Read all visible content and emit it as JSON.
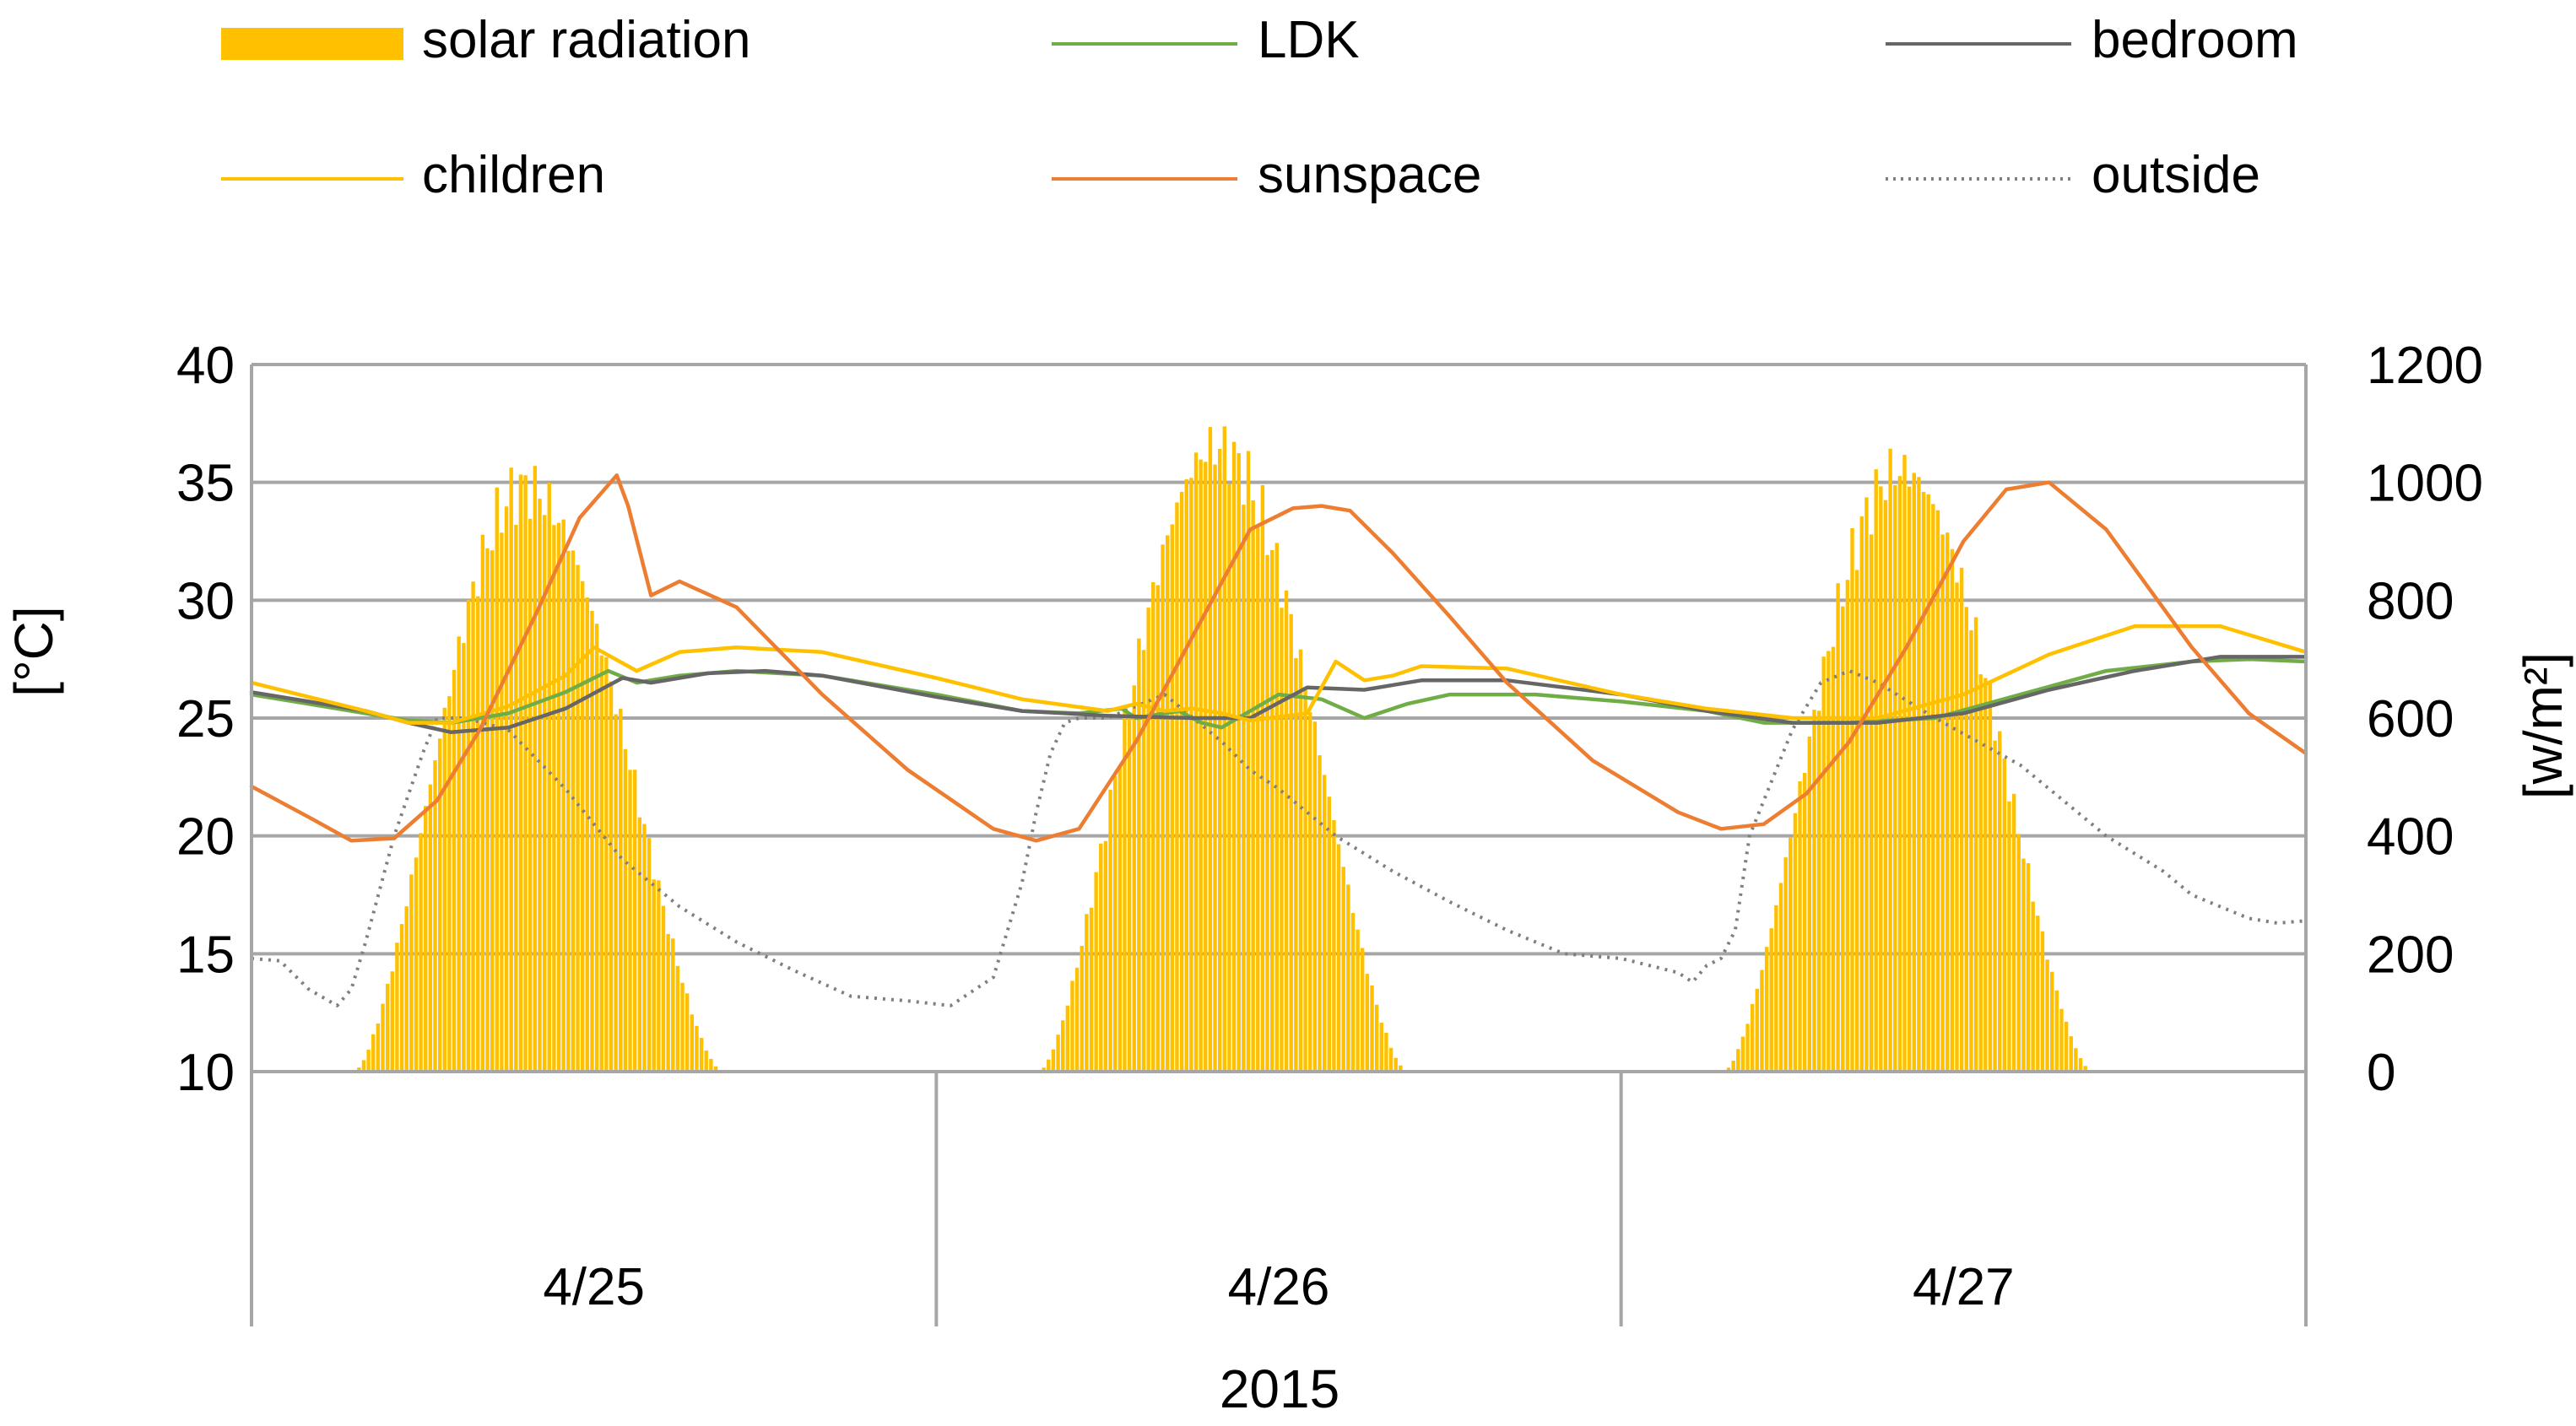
{
  "chart_data": {
    "type": "line",
    "title": "",
    "xlabel": "2015",
    "ylabel": "[°C]",
    "y2label": "[w/m²]",
    "ylim": [
      10,
      40
    ],
    "y2lim": [
      0,
      1200
    ],
    "yticks": [
      10,
      15,
      20,
      25,
      30,
      35,
      40
    ],
    "y2ticks": [
      0,
      200,
      400,
      600,
      800,
      1000,
      1200
    ],
    "x_unit": "hours from 0:00 on 4/25",
    "xlim": [
      0,
      72
    ],
    "day_labels": [
      "4/25",
      "4/26",
      "4/27"
    ],
    "day_boundaries": [
      0,
      24,
      48,
      72
    ],
    "grid": true,
    "legend_position": "top",
    "legend": [
      {
        "name": "solar radiation",
        "color": "#FFC000",
        "style": "bar"
      },
      {
        "name": "LDK",
        "color": "#70AD47",
        "style": "line"
      },
      {
        "name": "bedroom",
        "color": "#666666",
        "style": "line"
      },
      {
        "name": "children",
        "color": "#FFC000",
        "style": "line"
      },
      {
        "name": "sunspace",
        "color": "#ED7D31",
        "style": "line"
      },
      {
        "name": "outside",
        "color": "#7f7f7f",
        "style": "dotted"
      }
    ],
    "solar_radiation": {
      "axis": "right",
      "unit": "w/m2",
      "step_hours": 0.1667,
      "days": [
        {
          "start": 3.6,
          "peak_time": 9.6,
          "peak": 990,
          "end": 16.5
        },
        {
          "start": 27.6,
          "peak_time": 33.8,
          "peak": 1060,
          "end": 40.5
        },
        {
          "start": 51.6,
          "peak_time": 57.8,
          "peak": 1020,
          "end": 64.5
        }
      ]
    },
    "series": [
      {
        "name": "LDK",
        "axis": "left",
        "x": [
          0,
          2,
          4,
          5.5,
          7,
          9,
          11,
          12.5,
          13.5,
          15,
          17,
          20,
          24,
          27,
          29,
          30.5,
          31,
          32.5,
          33.3,
          34,
          36,
          37.5,
          39,
          40.5,
          42,
          45,
          48,
          51,
          53,
          56,
          59,
          62,
          65,
          68,
          70,
          72
        ],
        "y": [
          26.0,
          25.6,
          25.2,
          24.9,
          24.8,
          25.2,
          26.1,
          27.0,
          26.5,
          26.8,
          27.0,
          26.8,
          26.0,
          25.3,
          25.2,
          25.4,
          25.0,
          25.3,
          24.8,
          24.6,
          26.0,
          25.8,
          25.0,
          25.6,
          26.0,
          26.0,
          25.7,
          25.3,
          24.8,
          24.8,
          25.0,
          26.0,
          27.0,
          27.4,
          27.5,
          27.4
        ]
      },
      {
        "name": "bedroom",
        "axis": "left",
        "x": [
          0,
          2,
          4,
          5.5,
          7,
          9,
          11,
          13,
          14,
          16,
          18,
          20,
          24,
          27,
          30,
          33,
          35,
          37,
          39,
          41,
          44,
          48,
          51,
          54,
          57,
          60,
          63,
          66,
          69,
          72
        ],
        "y": [
          26.1,
          25.7,
          25.3,
          24.8,
          24.4,
          24.6,
          25.4,
          26.7,
          26.5,
          26.9,
          27.0,
          26.8,
          25.9,
          25.3,
          25.1,
          25.0,
          25.0,
          26.3,
          26.2,
          26.6,
          26.6,
          26.0,
          25.3,
          24.8,
          24.8,
          25.2,
          26.2,
          27.0,
          27.6,
          27.6
        ]
      },
      {
        "name": "children",
        "axis": "left",
        "x": [
          0,
          2,
          4,
          5.5,
          7,
          9,
          11,
          12,
          13.5,
          15,
          17,
          20,
          24,
          27,
          30,
          31,
          32,
          33,
          34,
          35,
          37,
          38,
          39,
          40,
          41,
          44,
          48,
          51,
          54,
          57,
          60,
          63,
          66,
          69,
          72
        ],
        "y": [
          26.5,
          25.9,
          25.3,
          24.8,
          24.8,
          25.5,
          26.8,
          28.0,
          27.0,
          27.8,
          28.0,
          27.8,
          26.7,
          25.8,
          25.3,
          25.6,
          25.3,
          25.4,
          25.2,
          24.9,
          25.2,
          27.4,
          26.6,
          26.8,
          27.2,
          27.1,
          26.0,
          25.4,
          25.0,
          25.0,
          26.0,
          27.7,
          28.9,
          28.9,
          27.8
        ]
      },
      {
        "name": "sunspace",
        "axis": "left",
        "x": [
          0,
          2,
          3.5,
          5,
          6.5,
          8,
          10,
          11.5,
          12.8,
          13.2,
          14,
          15,
          17,
          20,
          23,
          26,
          27.5,
          29,
          31,
          33,
          35,
          36.5,
          37.5,
          38.5,
          40,
          42,
          44,
          47,
          50,
          51.5,
          53,
          54.5,
          56,
          58,
          60,
          61.5,
          63,
          65,
          68,
          70,
          72
        ],
        "y": [
          22.1,
          20.8,
          19.8,
          19.9,
          21.5,
          24.5,
          29.5,
          33.5,
          35.3,
          34.0,
          30.2,
          30.8,
          29.7,
          26.0,
          22.8,
          20.3,
          19.8,
          20.3,
          24.0,
          28.5,
          33.0,
          33.9,
          34.0,
          33.8,
          32.0,
          29.3,
          26.5,
          23.2,
          21.0,
          20.3,
          20.5,
          21.8,
          24.0,
          28.0,
          32.5,
          34.7,
          35.0,
          33.0,
          28.0,
          25.2,
          23.5
        ]
      },
      {
        "name": "outside",
        "axis": "left",
        "x": [
          0,
          1,
          2,
          3,
          3.5,
          4,
          5,
          6,
          6.5,
          7.5,
          9,
          11,
          13,
          15,
          17,
          19,
          21,
          23,
          24.5,
          26,
          27,
          27.5,
          28,
          28.5,
          29,
          30,
          31,
          32,
          34,
          35,
          36,
          38,
          40,
          42,
          44,
          46,
          48,
          49,
          50,
          50.5,
          51,
          51.5,
          52,
          52.5,
          54,
          55,
          56,
          57,
          59,
          62,
          65,
          67,
          68,
          69,
          70,
          71,
          72
        ],
        "y": [
          14.8,
          14.7,
          13.5,
          12.8,
          13.5,
          15.5,
          20.0,
          23.5,
          25.0,
          25.0,
          24.5,
          22.0,
          19.0,
          17.0,
          15.5,
          14.3,
          13.2,
          13.0,
          12.8,
          14.0,
          18.0,
          21.0,
          23.5,
          24.8,
          25.0,
          25.0,
          25.5,
          26.0,
          24.0,
          22.8,
          22.0,
          20.0,
          18.5,
          17.2,
          16.0,
          15.0,
          14.8,
          14.5,
          14.2,
          13.8,
          14.5,
          14.8,
          16.0,
          20.0,
          24.5,
          26.5,
          27.0,
          26.5,
          25.0,
          23.0,
          20.0,
          18.5,
          17.5,
          17.0,
          16.5,
          16.3,
          16.4
        ]
      }
    ]
  }
}
